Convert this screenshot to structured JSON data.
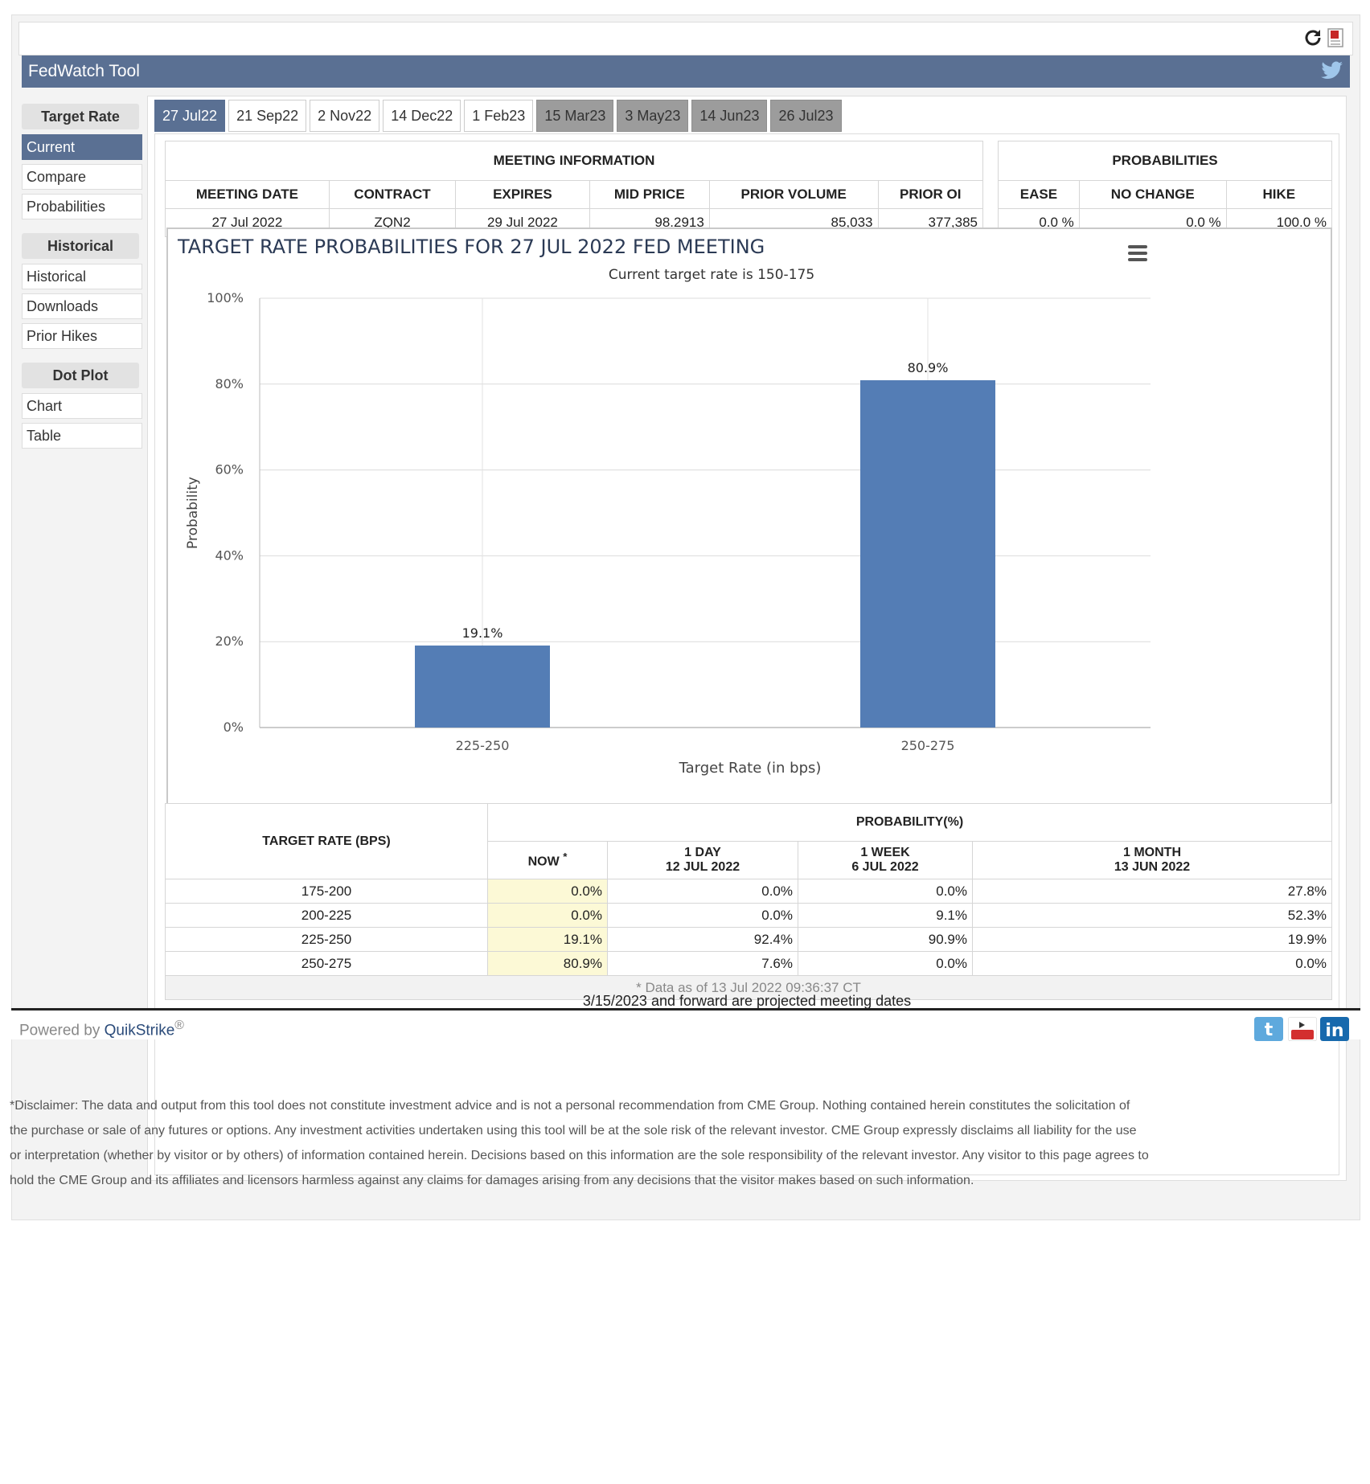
{
  "app": {
    "title": "FedWatch Tool"
  },
  "sidebar": {
    "sections": [
      {
        "heading": "Target Rate",
        "items": [
          "Current",
          "Compare",
          "Probabilities"
        ]
      },
      {
        "heading": "Historical",
        "items": [
          "Historical",
          "Downloads",
          "Prior Hikes"
        ]
      },
      {
        "heading": "Dot Plot",
        "items": [
          "Chart",
          "Table"
        ]
      }
    ],
    "active_item": "Current"
  },
  "tabs": [
    {
      "label": "27 Jul22",
      "state": "active"
    },
    {
      "label": "21 Sep22",
      "state": "normal"
    },
    {
      "label": "2 Nov22",
      "state": "normal"
    },
    {
      "label": "14 Dec22",
      "state": "normal"
    },
    {
      "label": "1 Feb23",
      "state": "normal"
    },
    {
      "label": "15 Mar23",
      "state": "projected"
    },
    {
      "label": "3 May23",
      "state": "projected"
    },
    {
      "label": "14 Jun23",
      "state": "projected"
    },
    {
      "label": "26 Jul23",
      "state": "projected"
    }
  ],
  "meeting_info": {
    "caption": "MEETING INFORMATION",
    "headers": [
      "MEETING DATE",
      "CONTRACT",
      "EXPIRES",
      "MID PRICE",
      "PRIOR VOLUME",
      "PRIOR OI"
    ],
    "values": [
      "27 Jul 2022",
      "ZQN2",
      "29 Jul 2022",
      "98.2913",
      "85,033",
      "377,385"
    ]
  },
  "probabilities": {
    "caption": "PROBABILITIES",
    "headers": [
      "EASE",
      "NO CHANGE",
      "HIKE"
    ],
    "values": [
      "0.0 %",
      "0.0 %",
      "100.0 %"
    ]
  },
  "chart_data": {
    "type": "bar",
    "title": "TARGET RATE PROBABILITIES FOR 27 JUL 2022 FED MEETING",
    "subtitle": "Current target rate is 150-175",
    "xlabel": "Target Rate (in bps)",
    "ylabel": "Probability",
    "categories": [
      "225-250",
      "250-275"
    ],
    "values": [
      19.1,
      80.9
    ],
    "data_labels": [
      "19.1%",
      "80.9%"
    ],
    "yticks": [
      "0%",
      "20%",
      "40%",
      "60%",
      "80%",
      "100%"
    ],
    "ylim": [
      0,
      100
    ],
    "grid": true,
    "bar_color": "#547db5"
  },
  "prob_table": {
    "row_header": "TARGET RATE (BPS)",
    "group_header": "PROBABILITY(%)",
    "col_now": "NOW",
    "col_now_mark": "*",
    "cols": [
      {
        "line1": "1 DAY",
        "line2": "12 JUL 2022"
      },
      {
        "line1": "1 WEEK",
        "line2": "6 JUL 2022"
      },
      {
        "line1": "1 MONTH",
        "line2": "13 JUN 2022"
      }
    ],
    "rows": [
      {
        "rate": "175-200",
        "now": "0.0%",
        "day": "0.0%",
        "week": "0.0%",
        "month": "27.8%"
      },
      {
        "rate": "200-225",
        "now": "0.0%",
        "day": "0.0%",
        "week": "9.1%",
        "month": "52.3%"
      },
      {
        "rate": "225-250",
        "now": "19.1%",
        "day": "92.4%",
        "week": "90.9%",
        "month": "19.9%"
      },
      {
        "rate": "250-275",
        "now": "80.9%",
        "day": "7.6%",
        "week": "0.0%",
        "month": "0.0%"
      }
    ],
    "footnote": "* Data as of 13 Jul 2022 09:36:37 CT"
  },
  "projected_note": "3/15/2023 and forward are projected meeting dates",
  "footer": {
    "powered_prefix": "Powered by ",
    "powered_brand": "QuikStrike",
    "powered_mark": "®"
  },
  "disclaimer": "*Disclaimer: The data and output from this tool does not constitute investment advice and is not a personal recommendation from CME Group.  Nothing contained herein constitutes the solicitation of the purchase or sale of any futures or options.  Any investment activities undertaken using this tool will be at the sole risk of the relevant investor.  CME Group expressly disclaims all liability for the use or interpretation (whether by visitor or by others) of information contained herein. Decisions based on this information are the sole responsibility of the relevant investor.  Any visitor to this page agrees to hold the CME Group and its affiliates and licensors harmless against any claims for damages arising from any decisions that the visitor makes based on such information.",
  "icons": [
    "refresh-icon",
    "pdf-icon",
    "twitter-icon",
    "chart-menu-icon",
    "twitter-social-icon",
    "youtube-social-icon",
    "linkedin-social-icon"
  ]
}
